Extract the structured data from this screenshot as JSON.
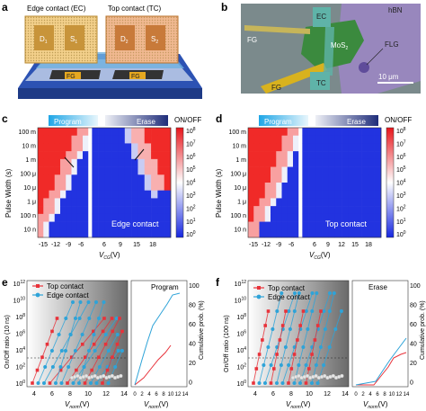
{
  "panels": {
    "a": {
      "letter": "a",
      "labels": {
        "ec": "Edge contact (EC)",
        "tc": "Top contact (TC)",
        "fg": "FG",
        "d": "D",
        "s": "S",
        "sub1": "1",
        "sub2": "2"
      }
    },
    "b": {
      "letter": "b",
      "labels": {
        "hbn": "hBN",
        "fg_top": "FG",
        "fg_bottom": "FG",
        "ec": "EC",
        "mos2": "MoS",
        "mos2_sub": "2",
        "flg": "FLG",
        "tc": "TC",
        "scale": "10 μm"
      },
      "colors": {
        "background": "#7b8a8c",
        "hbn": "#9e86c5",
        "mos2": "#3b8a3e",
        "gold": "#d8b21e",
        "electrode_teal": "#5fb3a8"
      }
    },
    "c": {
      "letter": "c",
      "header": {
        "program": "Program",
        "erase": "Erase"
      },
      "contact_label": "Edge contact",
      "ylabel": "Pulse Width (s)",
      "xlabel": "V",
      "xlabel_sub": "CG",
      "xlabel_unit": "(V)",
      "x_ticks_left": [
        "-15",
        "-12",
        "-9",
        "-6"
      ],
      "x_ticks_right": [
        "6",
        "9",
        "15",
        "18"
      ],
      "y_ticks": [
        "100 m",
        "10 m",
        "1 m",
        "100 μ",
        "10 μ",
        "1 μ",
        "100 n",
        "10 n"
      ]
    },
    "d": {
      "letter": "d",
      "header": {
        "program": "Program",
        "erase": "Erase"
      },
      "contact_label": "Top contact",
      "ylabel": "Pulse Width (s)",
      "xlabel": "V",
      "xlabel_sub": "CG",
      "xlabel_unit": "(V)",
      "x_ticks_left": [
        "-15",
        "-12",
        "-9",
        "-6"
      ],
      "x_ticks_right": [
        "6",
        "9",
        "12",
        "15",
        "18"
      ],
      "y_ticks": [
        "100 m",
        "10 m",
        "1 m",
        "100 μ",
        "10 μ",
        "1 μ",
        "100 n",
        "10 n"
      ]
    },
    "colorbar": {
      "title": "ON/OFF",
      "ticks": [
        "10",
        "10",
        "10",
        "10",
        "10",
        "10",
        "10",
        "10",
        "10"
      ],
      "tick_exponents": [
        "8",
        "7",
        "6",
        "5",
        "4",
        "3",
        "2",
        "1",
        "0"
      ],
      "colors": {
        "high": "#e8151b",
        "mid": "#ffffff",
        "low": "#1526e0"
      }
    },
    "e": {
      "letter": "e",
      "legend": {
        "top": "Top contact",
        "edge": "Edge contact"
      },
      "inset_label": "Program",
      "ylabel": "On/Off ratio (10 ns)",
      "ylabel_right": "Cumulative prob. (%)",
      "xlabel": "V",
      "xlabel_sub": "norm",
      "xlabel_unit": "(V)",
      "y_ticks": [
        "10",
        "10",
        "10",
        "10",
        "10",
        "10",
        "10"
      ],
      "y_tick_exponents": [
        "12",
        "10",
        "8",
        "6",
        "4",
        "2",
        "0"
      ],
      "x_ticks": [
        "4",
        "6",
        "8",
        "10",
        "12",
        "14"
      ],
      "inset_x_ticks": [
        "0",
        "2",
        "4",
        "6",
        "8",
        "10",
        "12",
        "14"
      ],
      "right_y_ticks": [
        "100",
        "80",
        "60",
        "40",
        "20",
        "0"
      ]
    },
    "f": {
      "letter": "f",
      "legend": {
        "top": "Top contact",
        "edge": "Edge contact"
      },
      "inset_label": "Erase",
      "ylabel": "On/Off ratio (100 ns)",
      "ylabel_right": "Cumulative prob. (%)",
      "xlabel": "V",
      "xlabel_sub": "norm",
      "xlabel_unit": "(V)",
      "y_ticks": [
        "10",
        "10",
        "10",
        "10",
        "10",
        "10",
        "10"
      ],
      "y_tick_exponents": [
        "12",
        "10",
        "8",
        "6",
        "4",
        "2",
        "0"
      ],
      "x_ticks": [
        "4",
        "6",
        "8",
        "10",
        "12",
        "14"
      ],
      "inset_x_ticks": [
        "0",
        "2",
        "4",
        "6",
        "8",
        "10",
        "12",
        "14"
      ],
      "right_y_ticks": [
        "100",
        "80",
        "60",
        "40",
        "20",
        "0"
      ]
    }
  },
  "colors": {
    "top_contact": "#e8323a",
    "edge_contact": "#2ea3d8",
    "program_grad": "#3aa9e0",
    "erase_grad": "#1f2d7a"
  }
}
